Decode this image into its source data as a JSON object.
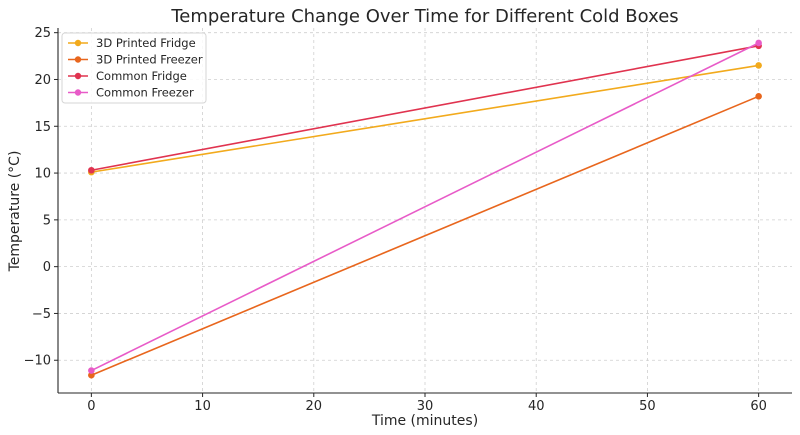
{
  "chart_data": {
    "type": "line",
    "title": "Temperature Change Over Time for Different Cold Boxes",
    "xlabel": "Time (minutes)",
    "ylabel": "Temperature (°C)",
    "xlim": [
      -3,
      63
    ],
    "ylim": [
      -13.5,
      25.5
    ],
    "xticks": [
      0,
      10,
      20,
      30,
      40,
      50,
      60
    ],
    "yticks": [
      -10,
      -5,
      0,
      5,
      10,
      15,
      20,
      25
    ],
    "yticklabels": [
      "−10",
      "−5",
      "0",
      "5",
      "10",
      "15",
      "20",
      "25"
    ],
    "grid": true,
    "legend_position": "top-left",
    "series": [
      {
        "name": "3D Printed Fridge",
        "color": "#f2aa1c",
        "x": [
          0,
          60
        ],
        "y": [
          10.1,
          21.5
        ]
      },
      {
        "name": "3D Printed Freezer",
        "color": "#e8661d",
        "x": [
          0,
          60
        ],
        "y": [
          -11.6,
          18.2
        ]
      },
      {
        "name": "Common Fridge",
        "color": "#e0334f",
        "x": [
          0,
          60
        ],
        "y": [
          10.3,
          23.6
        ]
      },
      {
        "name": "Common Freezer",
        "color": "#e85bc8",
        "x": [
          0,
          60
        ],
        "y": [
          -11.1,
          23.9
        ]
      }
    ]
  }
}
